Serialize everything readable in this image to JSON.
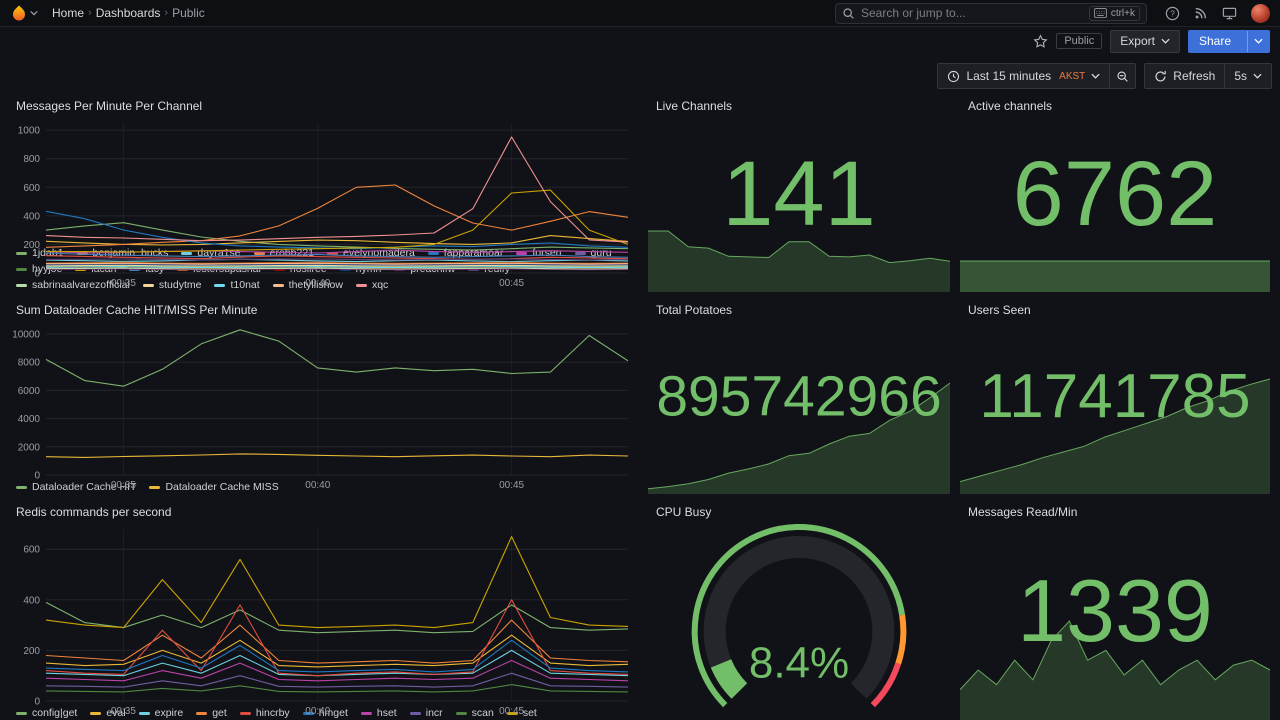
{
  "nav": {
    "breadcrumb": [
      {
        "label": "Home"
      },
      {
        "label": "Dashboards"
      },
      {
        "label": "Public"
      }
    ],
    "search": {
      "placeholder": "Search or jump to...",
      "shortcut": "ctrl+k"
    }
  },
  "toolbar": {
    "visibility_badge": "Public",
    "export_label": "Export",
    "share_label": "Share"
  },
  "timebar": {
    "range_label": "Last 15 minutes",
    "timezone": "AKST",
    "refresh_label": "Refresh",
    "interval": "5s"
  },
  "panels": {
    "messages": {
      "title": "Messages Per Minute Per Channel"
    },
    "live_channels": {
      "title": "Live Channels",
      "value": "141"
    },
    "active_channels": {
      "title": "Active channels",
      "value": "6762"
    },
    "dataloader": {
      "title": "Sum Dataloader Cache HIT/MISS Per Minute"
    },
    "total_potatoes": {
      "title": "Total Potatoes",
      "value": "895742966"
    },
    "users_seen": {
      "title": "Users Seen",
      "value": "11741785"
    },
    "redis": {
      "title": "Redis commands per second"
    },
    "cpu_busy": {
      "title": "CPU Busy",
      "value": "8.4%"
    },
    "messages_read": {
      "title": "Messages Read/Min",
      "value": "1339"
    }
  },
  "colors": {
    "stat_green": "#73bf69",
    "primary_blue": "#3d71d9",
    "timezone_orange": "#eb7b3f"
  },
  "chart_data": [
    {
      "id": "messages",
      "type": "line",
      "title": "Messages Per Minute Per Channel",
      "ylim": [
        0,
        1050
      ],
      "yticks": [
        0,
        200,
        400,
        600,
        800,
        1000
      ],
      "x_range": [
        "00:33",
        "00:48"
      ],
      "xticks": [
        {
          "f": 0.133,
          "label": "00:35"
        },
        {
          "f": 0.467,
          "label": "00:40"
        },
        {
          "f": 0.8,
          "label": "00:45"
        }
      ],
      "legend_position": "bottom",
      "grid": true,
      "series": [
        {
          "name": "1jdab1",
          "color": "#7EB26D",
          "values": [
            300,
            330,
            352,
            300,
            252,
            222,
            200,
            190,
            181,
            172,
            166,
            160,
            170,
            181,
            176,
            170
          ]
        },
        {
          "name": "benjamin_bucks",
          "color": "#EAB839",
          "values": [
            222,
            211,
            200,
            196,
            200,
            211,
            221,
            230,
            226,
            215,
            206,
            200,
            211,
            262,
            241,
            221
          ]
        },
        {
          "name": "dayra1se",
          "color": "#6ED0E0",
          "values": [
            90,
            86,
            81,
            85,
            92,
            96,
            90,
            85,
            80,
            86,
            91,
            85,
            80,
            86,
            90,
            85
          ]
        },
        {
          "name": "erobb221",
          "color": "#EF843C",
          "values": [
            180,
            190,
            200,
            215,
            226,
            260,
            330,
            452,
            600,
            616,
            470,
            350,
            300,
            362,
            430,
            390
          ]
        },
        {
          "name": "evelynomadera",
          "color": "#E24D42",
          "values": [
            121,
            116,
            110,
            105,
            100,
            111,
            120,
            115,
            110,
            105,
            100,
            96,
            100,
            110,
            106,
            100
          ]
        },
        {
          "name": "fapparamoar",
          "color": "#1F78C1",
          "values": [
            432,
            380,
            301,
            250,
            211,
            190,
            181,
            176,
            170,
            181,
            190,
            185,
            200,
            211,
            190,
            180
          ]
        },
        {
          "name": "forsen",
          "color": "#BA43A9",
          "values": [
            151,
            141,
            145,
            150,
            156,
            150,
            145,
            140,
            150,
            161,
            150,
            145,
            150,
            156,
            150,
            145
          ]
        },
        {
          "name": "guru",
          "color": "#705DA0",
          "values": [
            60,
            62,
            66,
            60,
            58,
            60,
            62,
            65,
            60,
            58,
            60,
            62,
            65,
            60,
            58,
            60
          ]
        },
        {
          "name": "hyyjoe",
          "color": "#508642",
          "values": [
            45,
            48,
            50,
            46,
            44,
            45,
            48,
            50,
            46,
            44,
            45,
            48,
            50,
            46,
            44,
            45
          ]
        },
        {
          "name": "lacari",
          "color": "#CCA300",
          "values": [
            150,
            150,
            146,
            150,
            155,
            160,
            166,
            170,
            176,
            180,
            200,
            300,
            560,
            580,
            300,
            200
          ]
        },
        {
          "name": "lacy",
          "color": "#447EBC",
          "values": [
            140,
            131,
            125,
            120,
            115,
            120,
            126,
            130,
            120,
            115,
            110,
            115,
            120,
            125,
            115,
            110
          ]
        },
        {
          "name": "lestersupashal",
          "color": "#C15C17",
          "values": [
            70,
            72,
            75,
            70,
            68,
            70,
            73,
            75,
            70,
            68,
            70,
            72,
            75,
            70,
            68,
            70
          ]
        },
        {
          "name": "nosliree",
          "color": "#890F02",
          "values": [
            35,
            36,
            38,
            35,
            33,
            35,
            37,
            38,
            35,
            33,
            35,
            36,
            38,
            35,
            33,
            35
          ]
        },
        {
          "name": "nymn",
          "color": "#0A437C",
          "values": [
            55,
            56,
            58,
            55,
            52,
            55,
            57,
            58,
            55,
            52,
            55,
            56,
            58,
            55,
            52,
            55
          ]
        },
        {
          "name": "preachifw",
          "color": "#6D1F62",
          "values": [
            25,
            26,
            28,
            25,
            23,
            25,
            27,
            28,
            25,
            23,
            25,
            26,
            28,
            25,
            23,
            25
          ]
        },
        {
          "name": "redify",
          "color": "#584477",
          "values": [
            95,
            96,
            98,
            95,
            92,
            95,
            97,
            98,
            95,
            92,
            95,
            96,
            98,
            95,
            92,
            95
          ]
        },
        {
          "name": "sabrinaalvarezofficial",
          "color": "#B7DBAB",
          "values": [
            30,
            32,
            34,
            30,
            28,
            30,
            32,
            34,
            30,
            28,
            30,
            32,
            34,
            30,
            28,
            30
          ]
        },
        {
          "name": "studytme",
          "color": "#F4D598",
          "values": [
            50,
            52,
            54,
            50,
            48,
            50,
            52,
            54,
            50,
            48,
            50,
            52,
            54,
            50,
            48,
            50
          ]
        },
        {
          "name": "t10nat",
          "color": "#70DBED",
          "values": [
            40,
            42,
            44,
            40,
            38,
            40,
            42,
            44,
            40,
            38,
            40,
            42,
            44,
            40,
            38,
            40
          ]
        },
        {
          "name": "thetyllishow",
          "color": "#F9BA8F",
          "values": [
            65,
            66,
            68,
            65,
            62,
            65,
            67,
            68,
            65,
            62,
            65,
            66,
            68,
            65,
            62,
            65
          ]
        },
        {
          "name": "xqc",
          "color": "#F29191",
          "values": [
            262,
            250,
            245,
            236,
            226,
            230,
            240,
            250,
            256,
            266,
            280,
            450,
            952,
            500,
            232,
            216
          ]
        }
      ]
    },
    {
      "id": "dataloader",
      "type": "line",
      "title": "Sum Dataloader Cache HIT/MISS Per Minute",
      "ylim": [
        0,
        10500
      ],
      "yticks": [
        0,
        2000,
        4000,
        6000,
        8000,
        10000
      ],
      "x_range": [
        "00:33",
        "00:48"
      ],
      "xticks": [
        {
          "f": 0.133,
          "label": "00:35"
        },
        {
          "f": 0.467,
          "label": "00:40"
        },
        {
          "f": 0.8,
          "label": "00:45"
        }
      ],
      "legend_position": "bottom",
      "grid": true,
      "series": [
        {
          "name": "Dataloader Cache HIT",
          "color": "#7EB26D",
          "values": [
            8200,
            6700,
            6300,
            7500,
            9300,
            10300,
            9500,
            7600,
            7300,
            7600,
            7400,
            7500,
            7200,
            7300,
            9900,
            8100
          ]
        },
        {
          "name": "Dataloader Cache MISS",
          "color": "#EAB839",
          "values": [
            1300,
            1250,
            1310,
            1360,
            1420,
            1500,
            1460,
            1400,
            1350,
            1300,
            1360,
            1410,
            1350,
            1300,
            1410,
            1350
          ]
        }
      ]
    },
    {
      "id": "redis",
      "type": "line",
      "title": "Redis commands per second",
      "ylim": [
        0,
        680
      ],
      "yticks": [
        0,
        200,
        400,
        600
      ],
      "x_range": [
        "00:33",
        "00:48"
      ],
      "xticks": [
        {
          "f": 0.133,
          "label": "00:35"
        },
        {
          "f": 0.467,
          "label": "00:40"
        },
        {
          "f": 0.8,
          "label": "00:45"
        }
      ],
      "legend_position": "bottom",
      "grid": true,
      "series": [
        {
          "name": "config|get",
          "color": "#7EB26D",
          "values": [
            390,
            310,
            290,
            340,
            290,
            360,
            280,
            270,
            275,
            280,
            270,
            275,
            380,
            290,
            280,
            285
          ]
        },
        {
          "name": "eval",
          "color": "#EAB839",
          "values": [
            150,
            140,
            145,
            200,
            150,
            240,
            140,
            135,
            140,
            145,
            140,
            150,
            260,
            150,
            140,
            145
          ]
        },
        {
          "name": "expire",
          "color": "#6ED0E0",
          "values": [
            110,
            105,
            100,
            150,
            110,
            180,
            105,
            100,
            105,
            110,
            105,
            110,
            200,
            110,
            105,
            100
          ]
        },
        {
          "name": "get",
          "color": "#EF843C",
          "values": [
            180,
            170,
            160,
            260,
            170,
            300,
            160,
            150,
            155,
            160,
            150,
            160,
            320,
            170,
            160,
            155
          ]
        },
        {
          "name": "hincrby",
          "color": "#E24D42",
          "values": [
            120,
            110,
            105,
            280,
            120,
            380,
            110,
            100,
            110,
            115,
            105,
            115,
            400,
            120,
            110,
            105
          ]
        },
        {
          "name": "hmget",
          "color": "#1F78C1",
          "values": [
            130,
            125,
            120,
            180,
            130,
            220,
            120,
            115,
            120,
            125,
            115,
            125,
            240,
            130,
            120,
            115
          ]
        },
        {
          "name": "hset",
          "color": "#BA43A9",
          "values": [
            90,
            85,
            80,
            120,
            90,
            150,
            85,
            80,
            85,
            90,
            85,
            90,
            160,
            90,
            85,
            80
          ]
        },
        {
          "name": "incr",
          "color": "#705DA0",
          "values": [
            60,
            58,
            55,
            80,
            60,
            100,
            58,
            55,
            58,
            60,
            55,
            60,
            110,
            60,
            58,
            55
          ]
        },
        {
          "name": "scan",
          "color": "#508642",
          "values": [
            40,
            38,
            36,
            50,
            40,
            60,
            38,
            36,
            38,
            40,
            36,
            40,
            65,
            40,
            38,
            36
          ]
        },
        {
          "name": "set",
          "color": "#CCA300",
          "values": [
            320,
            300,
            290,
            480,
            310,
            560,
            300,
            290,
            295,
            300,
            290,
            310,
            650,
            330,
            300,
            295
          ]
        }
      ]
    },
    {
      "id": "live_channels",
      "type": "area",
      "color": "#73bf69",
      "fill_opacity": 0.22,
      "values": [
        9.5,
        9.5,
        7.0,
        6.8,
        5.5,
        5.4,
        5.3,
        7.8,
        7.8,
        5.5,
        5.4,
        5.7,
        4.5,
        4.8,
        5.2,
        4.7
      ]
    },
    {
      "id": "active_channels",
      "type": "area",
      "color": "#73bf69",
      "fill_opacity": 0.38,
      "values": [
        1,
        1,
        1,
        1,
        1,
        1,
        1,
        1
      ]
    },
    {
      "id": "total_potatoes",
      "type": "area",
      "color": "#73bf69",
      "fill_opacity": 0.22,
      "values": [
        120,
        180,
        260,
        380,
        560,
        680,
        820,
        1050,
        1120,
        1380,
        1600,
        1680,
        2050,
        2300,
        2680,
        3100
      ]
    },
    {
      "id": "users_seen",
      "type": "area",
      "color": "#73bf69",
      "fill_opacity": 0.22,
      "values": [
        1.0,
        1.5,
        2.0,
        2.5,
        3.1,
        3.6,
        4.1,
        4.9,
        5.5,
        6.1,
        6.7,
        7.5,
        8.1,
        8.9,
        9.5,
        10.0
      ]
    },
    {
      "id": "messages_read",
      "type": "area",
      "color": "#73bf69",
      "fill_opacity": 0.22,
      "values": [
        3,
        5,
        3.5,
        6,
        4,
        8,
        10,
        6,
        7,
        4.5,
        6,
        3.5,
        5,
        6,
        4,
        5.5,
        6,
        5
      ]
    },
    {
      "id": "cpu_busy",
      "type": "gauge",
      "value": 8.4,
      "unit": "%",
      "text": "8.4%",
      "min": 0,
      "max": 100,
      "thresholds": [
        {
          "value": 0,
          "color": "#73bf69"
        },
        {
          "value": 80,
          "color": "#ff9830"
        },
        {
          "value": 90,
          "color": "#f2495c"
        }
      ]
    }
  ]
}
